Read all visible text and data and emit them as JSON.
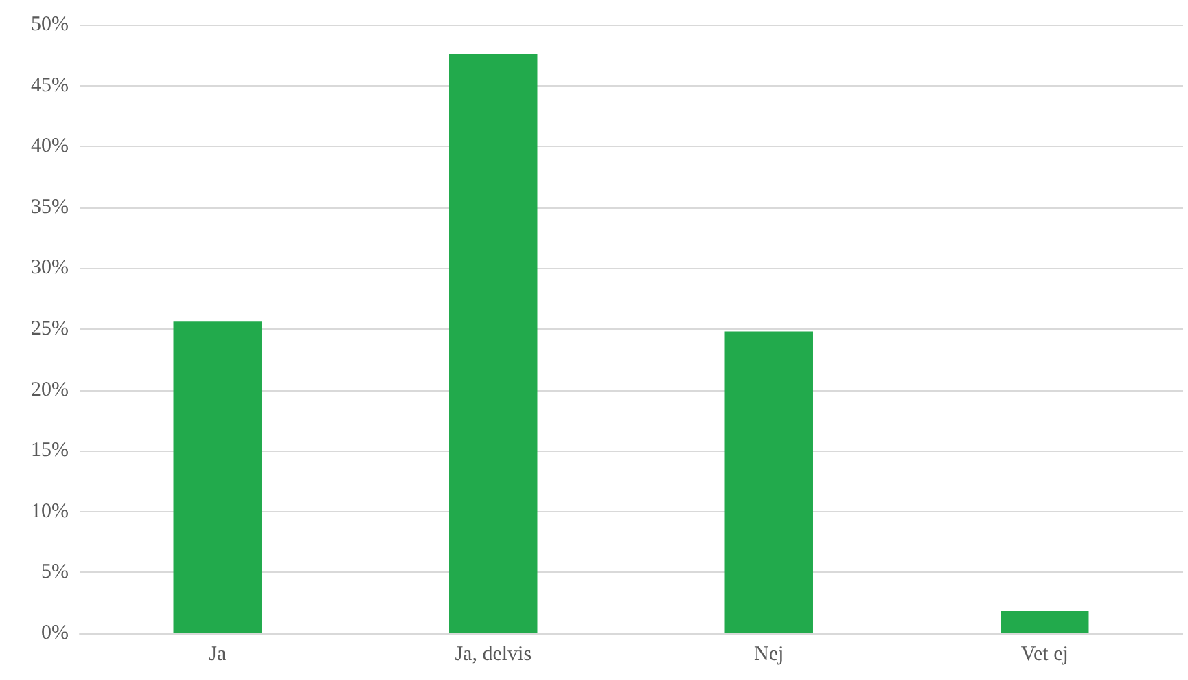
{
  "chart_data": {
    "type": "bar",
    "categories": [
      "Ja",
      "Ja, delvis",
      "Nej",
      "Vet ej"
    ],
    "values": [
      25.6,
      47.6,
      24.8,
      1.8
    ],
    "color": "#22aa4c",
    "ylim": [
      0,
      50
    ],
    "yticks": [
      {
        "value": 0,
        "label": "0%"
      },
      {
        "value": 5,
        "label": "5%"
      },
      {
        "value": 10,
        "label": "10%"
      },
      {
        "value": 15,
        "label": "15%"
      },
      {
        "value": 20,
        "label": "20%"
      },
      {
        "value": 25,
        "label": "25%"
      },
      {
        "value": 30,
        "label": "30%"
      },
      {
        "value": 35,
        "label": "35%"
      },
      {
        "value": 40,
        "label": "40%"
      },
      {
        "value": 45,
        "label": "45%"
      },
      {
        "value": 50,
        "label": "50%"
      }
    ],
    "grid": "y"
  }
}
